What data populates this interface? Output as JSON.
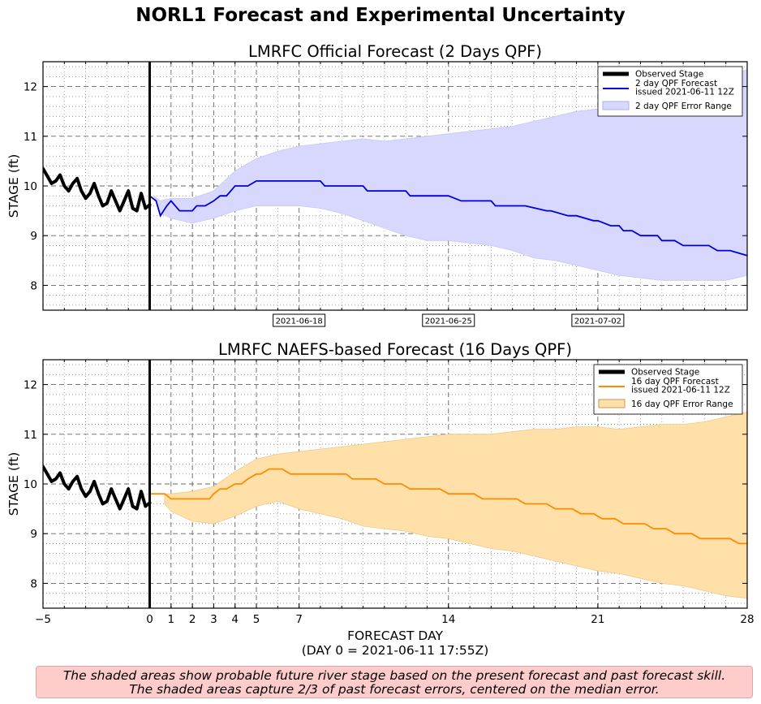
{
  "suptitle": "NORL1 Forecast and Experimental Uncertainty",
  "footnote": {
    "line1": "The shaded areas show probable future river stage based on the present forecast and past forecast skill.",
    "line2": "The shaded areas capture 2/3 of past forecast errors, centered on the median error."
  },
  "colors": {
    "observed": "#000000",
    "forecast_2day": "#0000dd",
    "band_2day": "#d8d8ff",
    "forecast_16day": "#ff8c00",
    "band_16day": "#ffe0a8",
    "footnote_bg": "#ffcccc"
  },
  "chart_data": [
    {
      "type": "line",
      "title": "LMRFC Official Forecast (2 Days QPF)",
      "ylabel": "STAGE (ft)",
      "xlabel": "",
      "xlim": [
        -5,
        28
      ],
      "ylim": [
        7.5,
        12.5
      ],
      "yticks": [
        8,
        9,
        10,
        11,
        12
      ],
      "grid": true,
      "legend": "top-right",
      "date_labels": [
        {
          "x": 7,
          "label": "2021-06-18"
        },
        {
          "x": 14,
          "label": "2021-06-25"
        },
        {
          "x": 21,
          "label": "2021-07-02"
        }
      ],
      "series": [
        {
          "name": "Observed Stage",
          "kind": "observed",
          "x": [
            -5,
            -4.8,
            -4.6,
            -4.4,
            -4.2,
            -4,
            -3.8,
            -3.6,
            -3.4,
            -3.2,
            -3,
            -2.8,
            -2.6,
            -2.4,
            -2.2,
            -2,
            -1.8,
            -1.6,
            -1.4,
            -1.2,
            -1,
            -0.8,
            -0.6,
            -0.4,
            -0.2,
            0
          ],
          "y": [
            10.35,
            10.2,
            10.05,
            10.1,
            10.22,
            10.0,
            9.9,
            10.05,
            10.15,
            9.9,
            9.75,
            9.85,
            10.05,
            9.8,
            9.6,
            9.65,
            9.9,
            9.7,
            9.5,
            9.7,
            9.9,
            9.55,
            9.5,
            9.85,
            9.55,
            9.62
          ]
        },
        {
          "name": "2 day QPF Forecast issued 2021-06-11 12Z",
          "kind": "forecast",
          "x": [
            0,
            0.3,
            0.5,
            0.8,
            1,
            1.4,
            2,
            2.2,
            2.6,
            3,
            3.3,
            3.6,
            4,
            4.6,
            5,
            8,
            8.2,
            10,
            10.2,
            12,
            12.2,
            13.6,
            14,
            14.6,
            16,
            16.2,
            17.6,
            18.6,
            18.8,
            19.6,
            20,
            20.8,
            21,
            21.6,
            22,
            22.2,
            22.6,
            23,
            23.8,
            24,
            24.6,
            25,
            26.2,
            26.6,
            27.2,
            28
          ],
          "y": [
            9.8,
            9.7,
            9.4,
            9.6,
            9.7,
            9.5,
            9.5,
            9.6,
            9.6,
            9.7,
            9.8,
            9.8,
            10.0,
            10.0,
            10.1,
            10.1,
            10.0,
            10.0,
            9.9,
            9.9,
            9.8,
            9.8,
            9.8,
            9.7,
            9.7,
            9.6,
            9.6,
            9.5,
            9.5,
            9.4,
            9.4,
            9.3,
            9.3,
            9.2,
            9.2,
            9.1,
            9.1,
            9.0,
            9.0,
            8.9,
            8.9,
            8.8,
            8.8,
            8.7,
            8.7,
            8.6
          ]
        },
        {
          "name": "2 day QPF Error Range",
          "kind": "band",
          "x": [
            0.2,
            0.5,
            1,
            2,
            3,
            4,
            5,
            6,
            7,
            8,
            9,
            10,
            11,
            12,
            13,
            14,
            15,
            16,
            17,
            18,
            19,
            20,
            21,
            22,
            23,
            24,
            25,
            26,
            27,
            28
          ],
          "upper": [
            9.8,
            9.7,
            9.75,
            9.75,
            9.9,
            10.3,
            10.55,
            10.7,
            10.8,
            10.85,
            10.9,
            10.95,
            10.9,
            10.95,
            11.0,
            11.05,
            11.1,
            11.15,
            11.2,
            11.3,
            11.4,
            11.5,
            11.55,
            11.6,
            11.7,
            11.8,
            11.9,
            12.0,
            12.15,
            12.35
          ],
          "lower": [
            9.8,
            9.45,
            9.35,
            9.25,
            9.35,
            9.5,
            9.6,
            9.6,
            9.6,
            9.55,
            9.45,
            9.3,
            9.15,
            9.0,
            8.9,
            8.9,
            8.85,
            8.8,
            8.7,
            8.55,
            8.5,
            8.4,
            8.3,
            8.2,
            8.15,
            8.1,
            8.1,
            8.1,
            8.1,
            8.2
          ]
        }
      ]
    },
    {
      "type": "line",
      "title": "LMRFC NAEFS-based Forecast (16 Days QPF)",
      "ylabel": "STAGE (ft)",
      "xlabel": "FORECAST DAY",
      "xlabel_sub": "(DAY 0 = 2021-06-11 17:55Z)",
      "xlim": [
        -5,
        28
      ],
      "ylim": [
        7.5,
        12.5
      ],
      "xticks": [
        -5,
        0,
        1,
        2,
        3,
        4,
        5,
        7,
        14,
        21,
        28
      ],
      "yticks": [
        8,
        9,
        10,
        11,
        12
      ],
      "grid": true,
      "legend": "top-right",
      "series": [
        {
          "name": "Observed Stage",
          "kind": "observed",
          "x": [
            -5,
            -4.8,
            -4.6,
            -4.4,
            -4.2,
            -4,
            -3.8,
            -3.6,
            -3.4,
            -3.2,
            -3,
            -2.8,
            -2.6,
            -2.4,
            -2.2,
            -2,
            -1.8,
            -1.6,
            -1.4,
            -1.2,
            -1,
            -0.8,
            -0.6,
            -0.4,
            -0.2,
            0
          ],
          "y": [
            10.35,
            10.2,
            10.05,
            10.1,
            10.22,
            10.0,
            9.9,
            10.05,
            10.15,
            9.9,
            9.75,
            9.85,
            10.05,
            9.8,
            9.6,
            9.65,
            9.9,
            9.7,
            9.5,
            9.7,
            9.9,
            9.55,
            9.5,
            9.85,
            9.55,
            9.62
          ]
        },
        {
          "name": "16 day QPF Forecast issued 2021-06-11 12Z",
          "kind": "forecast",
          "x": [
            0,
            0.7,
            1,
            2.8,
            3,
            3.3,
            3.6,
            4,
            4.3,
            4.6,
            5,
            5.2,
            5.6,
            5.9,
            6.2,
            6.6,
            7.8,
            8,
            8.6,
            9.2,
            9.5,
            10.6,
            11,
            11.8,
            12.2,
            13.6,
            14,
            15.2,
            15.6,
            17.2,
            17.6,
            18.6,
            19,
            19.8,
            20.2,
            20.8,
            21.2,
            21.8,
            22.2,
            23.2,
            23.6,
            24.2,
            24.6,
            25.4,
            25.8,
            27.2,
            27.6,
            28
          ],
          "y": [
            9.8,
            9.8,
            9.7,
            9.7,
            9.8,
            9.9,
            9.9,
            10.0,
            10.0,
            10.1,
            10.2,
            10.2,
            10.3,
            10.3,
            10.3,
            10.2,
            10.2,
            10.2,
            10.2,
            10.2,
            10.1,
            10.1,
            10.0,
            10.0,
            9.9,
            9.9,
            9.8,
            9.8,
            9.7,
            9.7,
            9.6,
            9.6,
            9.5,
            9.5,
            9.4,
            9.4,
            9.3,
            9.3,
            9.2,
            9.2,
            9.1,
            9.1,
            9.0,
            9.0,
            8.9,
            8.9,
            8.8,
            8.8
          ]
        },
        {
          "name": "16 day QPF Error Range",
          "kind": "band",
          "x": [
            0.7,
            1,
            2,
            3,
            4,
            5,
            6,
            7,
            8,
            9,
            10,
            11,
            12,
            13,
            14,
            15,
            16,
            17,
            18,
            19,
            20,
            21,
            22,
            23,
            24,
            25,
            26,
            27,
            28
          ],
          "upper": [
            9.8,
            9.8,
            9.85,
            9.95,
            10.25,
            10.5,
            10.6,
            10.65,
            10.7,
            10.75,
            10.8,
            10.85,
            10.9,
            10.95,
            11.0,
            11.0,
            11.0,
            11.05,
            11.1,
            11.1,
            11.15,
            11.15,
            11.1,
            11.15,
            11.2,
            11.2,
            11.25,
            11.35,
            11.45
          ],
          "lower": [
            9.6,
            9.45,
            9.25,
            9.2,
            9.35,
            9.55,
            9.65,
            9.5,
            9.4,
            9.3,
            9.15,
            9.1,
            9.05,
            8.95,
            8.9,
            8.8,
            8.7,
            8.65,
            8.55,
            8.45,
            8.35,
            8.25,
            8.2,
            8.1,
            8.0,
            7.95,
            7.85,
            7.75,
            7.7
          ]
        }
      ]
    }
  ]
}
